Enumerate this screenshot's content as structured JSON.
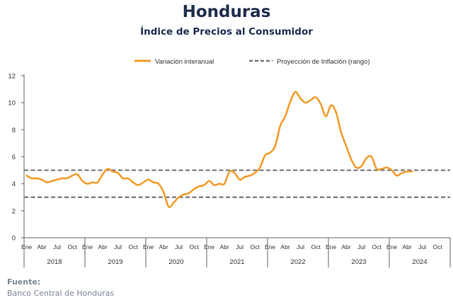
{
  "chart_data": {
    "type": "line",
    "title": "Honduras",
    "subtitle": "Índice de Precios al Consumidor",
    "ylim": [
      0,
      12
    ],
    "yticks": [
      0,
      2,
      4,
      6,
      8,
      10,
      12
    ],
    "month_labels": [
      "Ene",
      "Abr",
      "Jul",
      "Oct"
    ],
    "years": [
      "2018",
      "2019",
      "2020",
      "2021",
      "2022",
      "2023",
      "2024"
    ],
    "legend_position": "top",
    "series": [
      {
        "name": "Variación interanual",
        "color": "#f39c2b",
        "style": "solid",
        "x": [
          "2018-01",
          "2018-02",
          "2018-03",
          "2018-04",
          "2018-05",
          "2018-06",
          "2018-07",
          "2018-08",
          "2018-09",
          "2018-10",
          "2018-11",
          "2018-12",
          "2019-01",
          "2019-02",
          "2019-03",
          "2019-04",
          "2019-05",
          "2019-06",
          "2019-07",
          "2019-08",
          "2019-09",
          "2019-10",
          "2019-11",
          "2019-12",
          "2020-01",
          "2020-02",
          "2020-03",
          "2020-04",
          "2020-05",
          "2020-06",
          "2020-07",
          "2020-08",
          "2020-09",
          "2020-10",
          "2020-11",
          "2020-12",
          "2021-01",
          "2021-02",
          "2021-03",
          "2021-04",
          "2021-05",
          "2021-06",
          "2021-07",
          "2021-08",
          "2021-09",
          "2021-10",
          "2021-11",
          "2021-12",
          "2022-01",
          "2022-02",
          "2022-03",
          "2022-04",
          "2022-05",
          "2022-06",
          "2022-07",
          "2022-08",
          "2022-09",
          "2022-10",
          "2022-11",
          "2022-12",
          "2023-01",
          "2023-02",
          "2023-03",
          "2023-04",
          "2023-05",
          "2023-06",
          "2023-07",
          "2023-08",
          "2023-09",
          "2023-10",
          "2023-11",
          "2023-12",
          "2024-01",
          "2024-02",
          "2024-03",
          "2024-04",
          "2024-05"
        ],
        "values": [
          4.6,
          4.4,
          4.4,
          4.3,
          4.1,
          4.2,
          4.3,
          4.4,
          4.4,
          4.6,
          4.7,
          4.2,
          4.0,
          4.1,
          4.1,
          4.7,
          5.1,
          4.9,
          4.8,
          4.4,
          4.4,
          4.1,
          3.9,
          4.1,
          4.3,
          4.1,
          4.0,
          3.4,
          2.3,
          2.6,
          3.0,
          3.2,
          3.3,
          3.6,
          3.8,
          3.9,
          4.2,
          3.9,
          4.0,
          4.0,
          4.9,
          4.8,
          4.3,
          4.5,
          4.6,
          4.8,
          5.2,
          6.1,
          6.3,
          6.8,
          8.3,
          9.0,
          10.1,
          10.8,
          10.3,
          10.0,
          10.2,
          10.4,
          9.9,
          9.0,
          9.8,
          9.3,
          7.8,
          6.8,
          5.8,
          5.2,
          5.3,
          5.9,
          6.0,
          5.1,
          5.1,
          5.2,
          5.0,
          4.6,
          4.8,
          4.9,
          4.9
        ]
      },
      {
        "name": "Proyección de Inflación (rango)",
        "color": "#777777",
        "style": "dashed",
        "bounds": [
          3,
          5
        ]
      }
    ]
  },
  "footer": {
    "source_label": "Fuente:",
    "source_value": "Banco Central de Honduras"
  }
}
